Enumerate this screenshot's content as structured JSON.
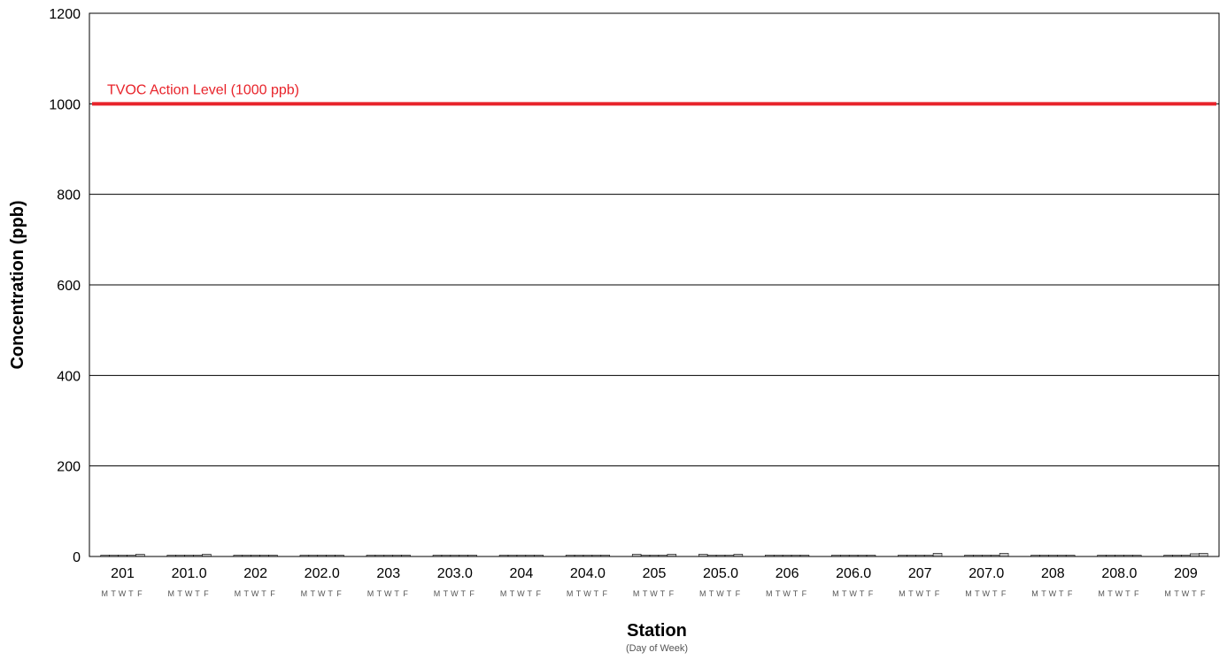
{
  "chart_data": {
    "type": "bar",
    "xlabel": "Station",
    "xlabel_sub": "(Day of Week)",
    "ylabel": "Concentration (ppb)",
    "ylim": [
      0,
      1200
    ],
    "yticks": [
      0,
      200,
      400,
      600,
      800,
      1000,
      1200
    ],
    "grid": true,
    "categories": [
      "201",
      "201.0",
      "202",
      "202.0",
      "203",
      "203.0",
      "204",
      "204.0",
      "205",
      "205.0",
      "206",
      "206.0",
      "207",
      "207.0",
      "208",
      "208.0",
      "209"
    ],
    "days": [
      "M",
      "T",
      "W",
      "T",
      "F"
    ],
    "values": [
      [
        3,
        3,
        3,
        3,
        5
      ],
      [
        3,
        3,
        3,
        3,
        5
      ],
      [
        3,
        3,
        3,
        3,
        3
      ],
      [
        3,
        3,
        3,
        3,
        3
      ],
      [
        3,
        3,
        3,
        3,
        3
      ],
      [
        3,
        3,
        3,
        3,
        3
      ],
      [
        3,
        3,
        3,
        3,
        3
      ],
      [
        3,
        3,
        3,
        3,
        3
      ],
      [
        5,
        3,
        3,
        3,
        5
      ],
      [
        5,
        3,
        3,
        3,
        5
      ],
      [
        3,
        3,
        3,
        3,
        3
      ],
      [
        3,
        3,
        3,
        3,
        3
      ],
      [
        3,
        3,
        3,
        3,
        7
      ],
      [
        3,
        3,
        3,
        3,
        7
      ],
      [
        3,
        3,
        3,
        3,
        3
      ],
      [
        3,
        3,
        3,
        3,
        3
      ],
      [
        3,
        3,
        3,
        6,
        7
      ]
    ],
    "reference_line": {
      "value": 1000,
      "label": "TVOC Action Level (1000 ppb)",
      "color": "#e8232a"
    },
    "bar_color": "#c8c8c8",
    "bar_edge_color": "#000000"
  }
}
